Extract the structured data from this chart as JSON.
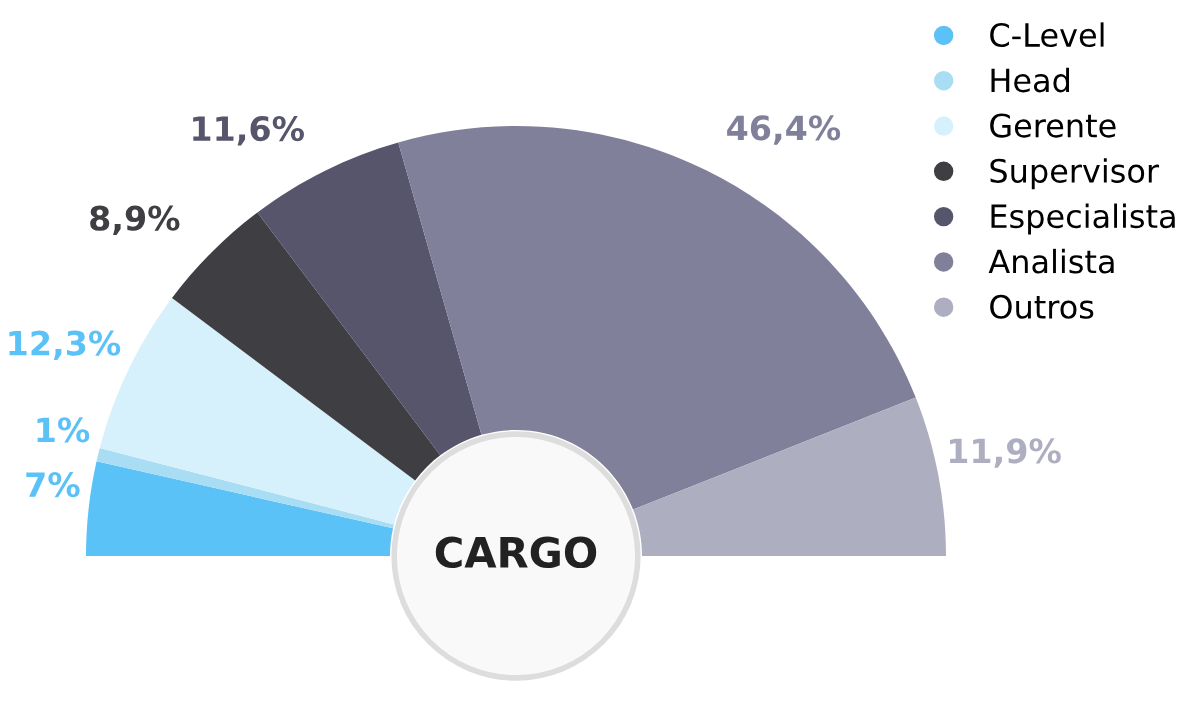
{
  "chart_data": {
    "type": "donut",
    "categories": [
      "C-Level",
      "Head",
      "Gerente",
      "Supervisor",
      "Especialista",
      "Analista",
      "Outros"
    ],
    "values": [
      7,
      1,
      12.3,
      8.9,
      11.6,
      46.4,
      11.9
    ],
    "colors": [
      "#5bc2f7",
      "#a9ddf3",
      "#d7f1fc",
      "#3e3e43",
      "#56556b",
      "#80809b",
      "#aeaec1"
    ],
    "value_labels": [
      "7%",
      "1%",
      "12,3%",
      "8,9%",
      "11,6%",
      "46,4%",
      "11,9%"
    ],
    "annotations": [
      "CARGO"
    ],
    "legend": "top right"
  }
}
